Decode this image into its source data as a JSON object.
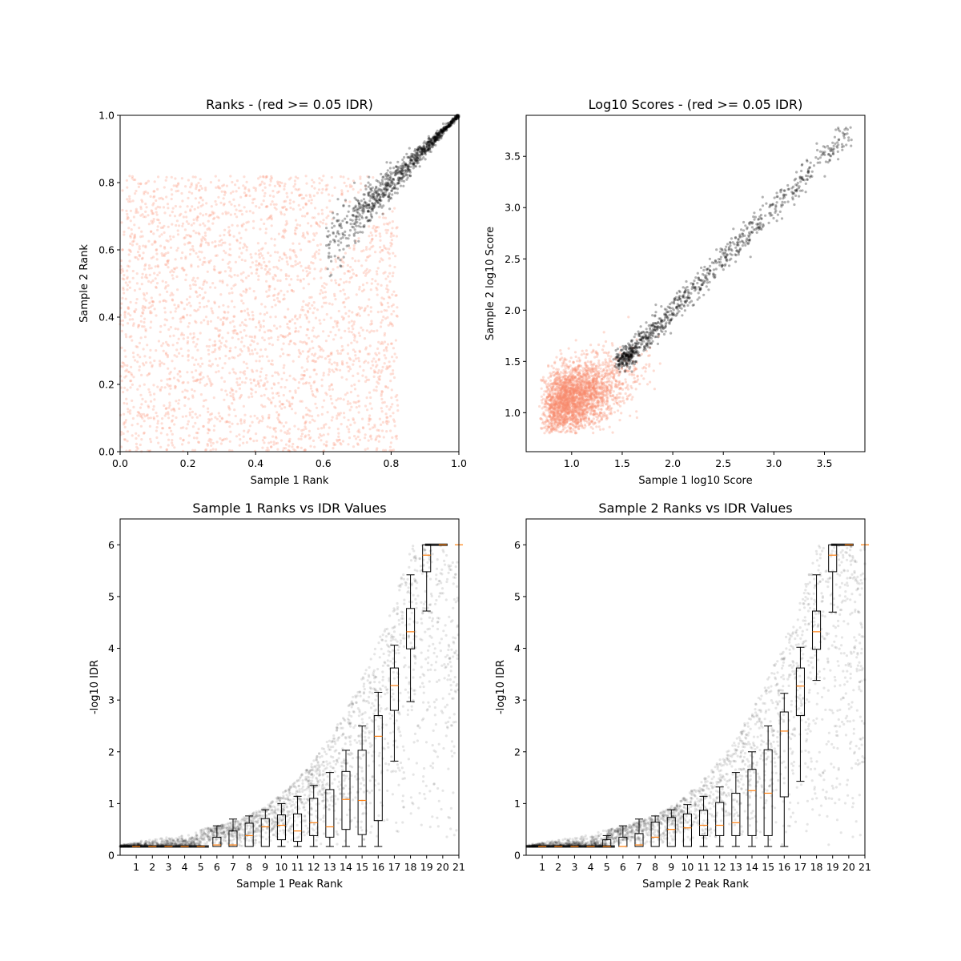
{
  "chart_data": [
    {
      "type": "scatter",
      "title": "Ranks - (red >= 0.05 IDR)",
      "xlabel": "Sample 1 Rank",
      "ylabel": "Sample 2 Rank",
      "xlim": [
        0.0,
        1.0
      ],
      "ylim": [
        0.0,
        1.0
      ],
      "xticks": [
        "0.0",
        "0.2",
        "0.4",
        "0.6",
        "0.8",
        "1.0"
      ],
      "yticks": [
        "0.0",
        "0.2",
        "0.4",
        "0.6",
        "0.8",
        "1.0"
      ],
      "grid": false,
      "colors": {
        "pass": "#000000",
        "fail": "#fa8c6e"
      },
      "series": [
        {
          "group": "IDR >= 0.05",
          "color": "#fa8c6e",
          "distribution": "uniform over [0,0.82]x[0,0.82], ~2800 points",
          "points": [
            [
              0.05,
              0.02
            ],
            [
              0.1,
              0.26
            ],
            [
              0.2,
              0.45
            ],
            [
              0.3,
              0.3
            ],
            [
              0.4,
              0.55
            ],
            [
              0.5,
              0.1
            ],
            [
              0.6,
              0.68
            ],
            [
              0.7,
              0.5
            ]
          ]
        },
        {
          "group": "IDR < 0.05",
          "color": "#000000",
          "distribution": "near diagonal from 0.6 to 1.0, ~900 points",
          "points": [
            [
              0.6,
              0.6
            ],
            [
              0.7,
              0.7
            ],
            [
              0.8,
              0.8
            ],
            [
              0.9,
              0.9
            ],
            [
              1.0,
              1.0
            ]
          ]
        }
      ]
    },
    {
      "type": "scatter",
      "title": "Log10 Scores - (red >= 0.05 IDR)",
      "xlabel": "Sample 1 log10 Score",
      "ylabel": "Sample 2 log10 Score",
      "xlim": [
        0.55,
        3.9
      ],
      "ylim": [
        0.62,
        3.9
      ],
      "xticks": [
        "1.0",
        "1.5",
        "2.0",
        "2.5",
        "3.0",
        "3.5"
      ],
      "yticks": [
        "1.0",
        "1.5",
        "2.0",
        "2.5",
        "3.0",
        "3.5"
      ],
      "grid": false,
      "series": [
        {
          "group": "IDR >= 0.05",
          "color": "#fa8c6e",
          "distribution": "cloud centered at (1.2,1.2), ~2800 points",
          "points": [
            [
              0.7,
              0.8
            ],
            [
              1.0,
              1.1
            ],
            [
              1.2,
              1.2
            ],
            [
              1.4,
              1.45
            ],
            [
              1.6,
              1.5
            ]
          ]
        },
        {
          "group": "IDR < 0.05",
          "color": "#000000",
          "distribution": "diagonal band from 1.5 to 3.75",
          "points": [
            [
              1.5,
              1.5
            ],
            [
              2.0,
              2.0
            ],
            [
              2.5,
              2.5
            ],
            [
              3.0,
              3.0
            ],
            [
              3.75,
              3.75
            ]
          ]
        }
      ]
    },
    {
      "type": "box",
      "title": "Sample 1 Ranks vs IDR Values",
      "xlabel": "Sample 1 Peak Rank",
      "ylabel": "-log10 IDR",
      "xlim": [
        0,
        21
      ],
      "ylim": [
        0,
        6.5
      ],
      "xticks": [
        "1",
        "2",
        "3",
        "4",
        "5",
        "6",
        "7",
        "8",
        "9",
        "10",
        "11",
        "12",
        "13",
        "14",
        "15",
        "16",
        "17",
        "18",
        "19",
        "20",
        "21"
      ],
      "yticks": [
        "0",
        "1",
        "2",
        "3",
        "4",
        "5",
        "6"
      ],
      "grid": false,
      "scatter_color": "#000000",
      "median_color": "#ff7f0e",
      "boxes": [
        {
          "pos": 1,
          "lw": 0.17,
          "q1": 0.17,
          "med": 0.17,
          "q3": 0.17,
          "hw": 0.17
        },
        {
          "pos": 2,
          "lw": 0.17,
          "q1": 0.17,
          "med": 0.17,
          "q3": 0.17,
          "hw": 0.17
        },
        {
          "pos": 3,
          "lw": 0.17,
          "q1": 0.17,
          "med": 0.17,
          "q3": 0.17,
          "hw": 0.17
        },
        {
          "pos": 4,
          "lw": 0.17,
          "q1": 0.17,
          "med": 0.17,
          "q3": 0.17,
          "hw": 0.17
        },
        {
          "pos": 5,
          "lw": 0.17,
          "q1": 0.17,
          "med": 0.17,
          "q3": 0.17,
          "hw": 0.17
        },
        {
          "pos": 6,
          "lw": 0.17,
          "q1": 0.17,
          "med": 0.2,
          "q3": 0.35,
          "hw": 0.57
        },
        {
          "pos": 7,
          "lw": 0.17,
          "q1": 0.17,
          "med": 0.2,
          "q3": 0.47,
          "hw": 0.7
        },
        {
          "pos": 8,
          "lw": 0.17,
          "q1": 0.17,
          "med": 0.38,
          "q3": 0.62,
          "hw": 0.76
        },
        {
          "pos": 9,
          "lw": 0.17,
          "q1": 0.17,
          "med": 0.55,
          "q3": 0.71,
          "hw": 0.88
        },
        {
          "pos": 10,
          "lw": 0.17,
          "q1": 0.3,
          "med": 0.58,
          "q3": 0.78,
          "hw": 1.0
        },
        {
          "pos": 11,
          "lw": 0.17,
          "q1": 0.27,
          "med": 0.47,
          "q3": 0.8,
          "hw": 1.14
        },
        {
          "pos": 12,
          "lw": 0.17,
          "q1": 0.38,
          "med": 0.63,
          "q3": 1.1,
          "hw": 1.35
        },
        {
          "pos": 13,
          "lw": 0.17,
          "q1": 0.35,
          "med": 0.55,
          "q3": 1.27,
          "hw": 1.6
        },
        {
          "pos": 14,
          "lw": 0.17,
          "q1": 0.5,
          "med": 1.08,
          "q3": 1.62,
          "hw": 2.03
        },
        {
          "pos": 15,
          "lw": 0.17,
          "q1": 0.4,
          "med": 1.06,
          "q3": 2.03,
          "hw": 2.5
        },
        {
          "pos": 16,
          "lw": 0.17,
          "q1": 0.67,
          "med": 2.3,
          "q3": 2.7,
          "hw": 3.15
        },
        {
          "pos": 17,
          "lw": 1.82,
          "q1": 2.8,
          "med": 3.28,
          "q3": 3.62,
          "hw": 4.06
        },
        {
          "pos": 18,
          "lw": 2.97,
          "q1": 3.99,
          "med": 4.32,
          "q3": 4.77,
          "hw": 5.42
        },
        {
          "pos": 19,
          "lw": 4.72,
          "q1": 5.48,
          "med": 5.8,
          "q3": 6.0,
          "hw": 6.0
        },
        {
          "pos": 20,
          "lw": 6.0,
          "q1": 6.0,
          "med": 6.0,
          "q3": 6.0,
          "hw": 6.0
        },
        {
          "pos": 21,
          "lw": 6.0,
          "q1": 6.0,
          "med": 6.0,
          "q3": 6.0,
          "hw": 6.0
        }
      ]
    },
    {
      "type": "box",
      "title": "Sample 2 Ranks vs IDR Values",
      "xlabel": "Sample 2 Peak Rank",
      "ylabel": "-log10 IDR",
      "xlim": [
        0,
        21
      ],
      "ylim": [
        0,
        6.5
      ],
      "xticks": [
        "1",
        "2",
        "3",
        "4",
        "5",
        "6",
        "7",
        "8",
        "9",
        "10",
        "11",
        "12",
        "13",
        "14",
        "15",
        "16",
        "17",
        "18",
        "19",
        "20",
        "21"
      ],
      "yticks": [
        "0",
        "1",
        "2",
        "3",
        "4",
        "5",
        "6"
      ],
      "grid": false,
      "scatter_color": "#000000",
      "median_color": "#ff7f0e",
      "boxes": [
        {
          "pos": 1,
          "lw": 0.17,
          "q1": 0.17,
          "med": 0.17,
          "q3": 0.17,
          "hw": 0.17
        },
        {
          "pos": 2,
          "lw": 0.17,
          "q1": 0.17,
          "med": 0.17,
          "q3": 0.17,
          "hw": 0.17
        },
        {
          "pos": 3,
          "lw": 0.17,
          "q1": 0.17,
          "med": 0.17,
          "q3": 0.17,
          "hw": 0.17
        },
        {
          "pos": 4,
          "lw": 0.17,
          "q1": 0.17,
          "med": 0.17,
          "q3": 0.17,
          "hw": 0.17
        },
        {
          "pos": 5,
          "lw": 0.17,
          "q1": 0.17,
          "med": 0.17,
          "q3": 0.3,
          "hw": 0.38
        },
        {
          "pos": 6,
          "lw": 0.17,
          "q1": 0.17,
          "med": 0.17,
          "q3": 0.35,
          "hw": 0.57
        },
        {
          "pos": 7,
          "lw": 0.17,
          "q1": 0.17,
          "med": 0.2,
          "q3": 0.42,
          "hw": 0.7
        },
        {
          "pos": 8,
          "lw": 0.17,
          "q1": 0.17,
          "med": 0.35,
          "q3": 0.64,
          "hw": 0.76
        },
        {
          "pos": 9,
          "lw": 0.17,
          "q1": 0.17,
          "med": 0.5,
          "q3": 0.73,
          "hw": 0.88
        },
        {
          "pos": 10,
          "lw": 0.17,
          "q1": 0.17,
          "med": 0.53,
          "q3": 0.8,
          "hw": 0.98
        },
        {
          "pos": 11,
          "lw": 0.17,
          "q1": 0.38,
          "med": 0.58,
          "q3": 0.87,
          "hw": 1.14
        },
        {
          "pos": 12,
          "lw": 0.17,
          "q1": 0.38,
          "med": 0.58,
          "q3": 1.02,
          "hw": 1.32
        },
        {
          "pos": 13,
          "lw": 0.17,
          "q1": 0.38,
          "med": 0.63,
          "q3": 1.2,
          "hw": 1.6
        },
        {
          "pos": 14,
          "lw": 0.17,
          "q1": 0.38,
          "med": 1.25,
          "q3": 1.66,
          "hw": 2.0
        },
        {
          "pos": 15,
          "lw": 0.17,
          "q1": 0.38,
          "med": 1.2,
          "q3": 2.04,
          "hw": 2.5
        },
        {
          "pos": 16,
          "lw": 0.17,
          "q1": 1.13,
          "med": 2.4,
          "q3": 2.77,
          "hw": 3.13
        },
        {
          "pos": 17,
          "lw": 1.43,
          "q1": 2.7,
          "med": 3.27,
          "q3": 3.62,
          "hw": 4.02
        },
        {
          "pos": 18,
          "lw": 3.38,
          "q1": 3.98,
          "med": 4.32,
          "q3": 4.72,
          "hw": 5.42
        },
        {
          "pos": 19,
          "lw": 4.7,
          "q1": 5.48,
          "med": 5.8,
          "q3": 6.0,
          "hw": 6.0
        },
        {
          "pos": 20,
          "lw": 6.0,
          "q1": 6.0,
          "med": 6.0,
          "q3": 6.0,
          "hw": 6.0
        },
        {
          "pos": 21,
          "lw": 6.0,
          "q1": 6.0,
          "med": 6.0,
          "q3": 6.0,
          "hw": 6.0
        }
      ]
    }
  ]
}
